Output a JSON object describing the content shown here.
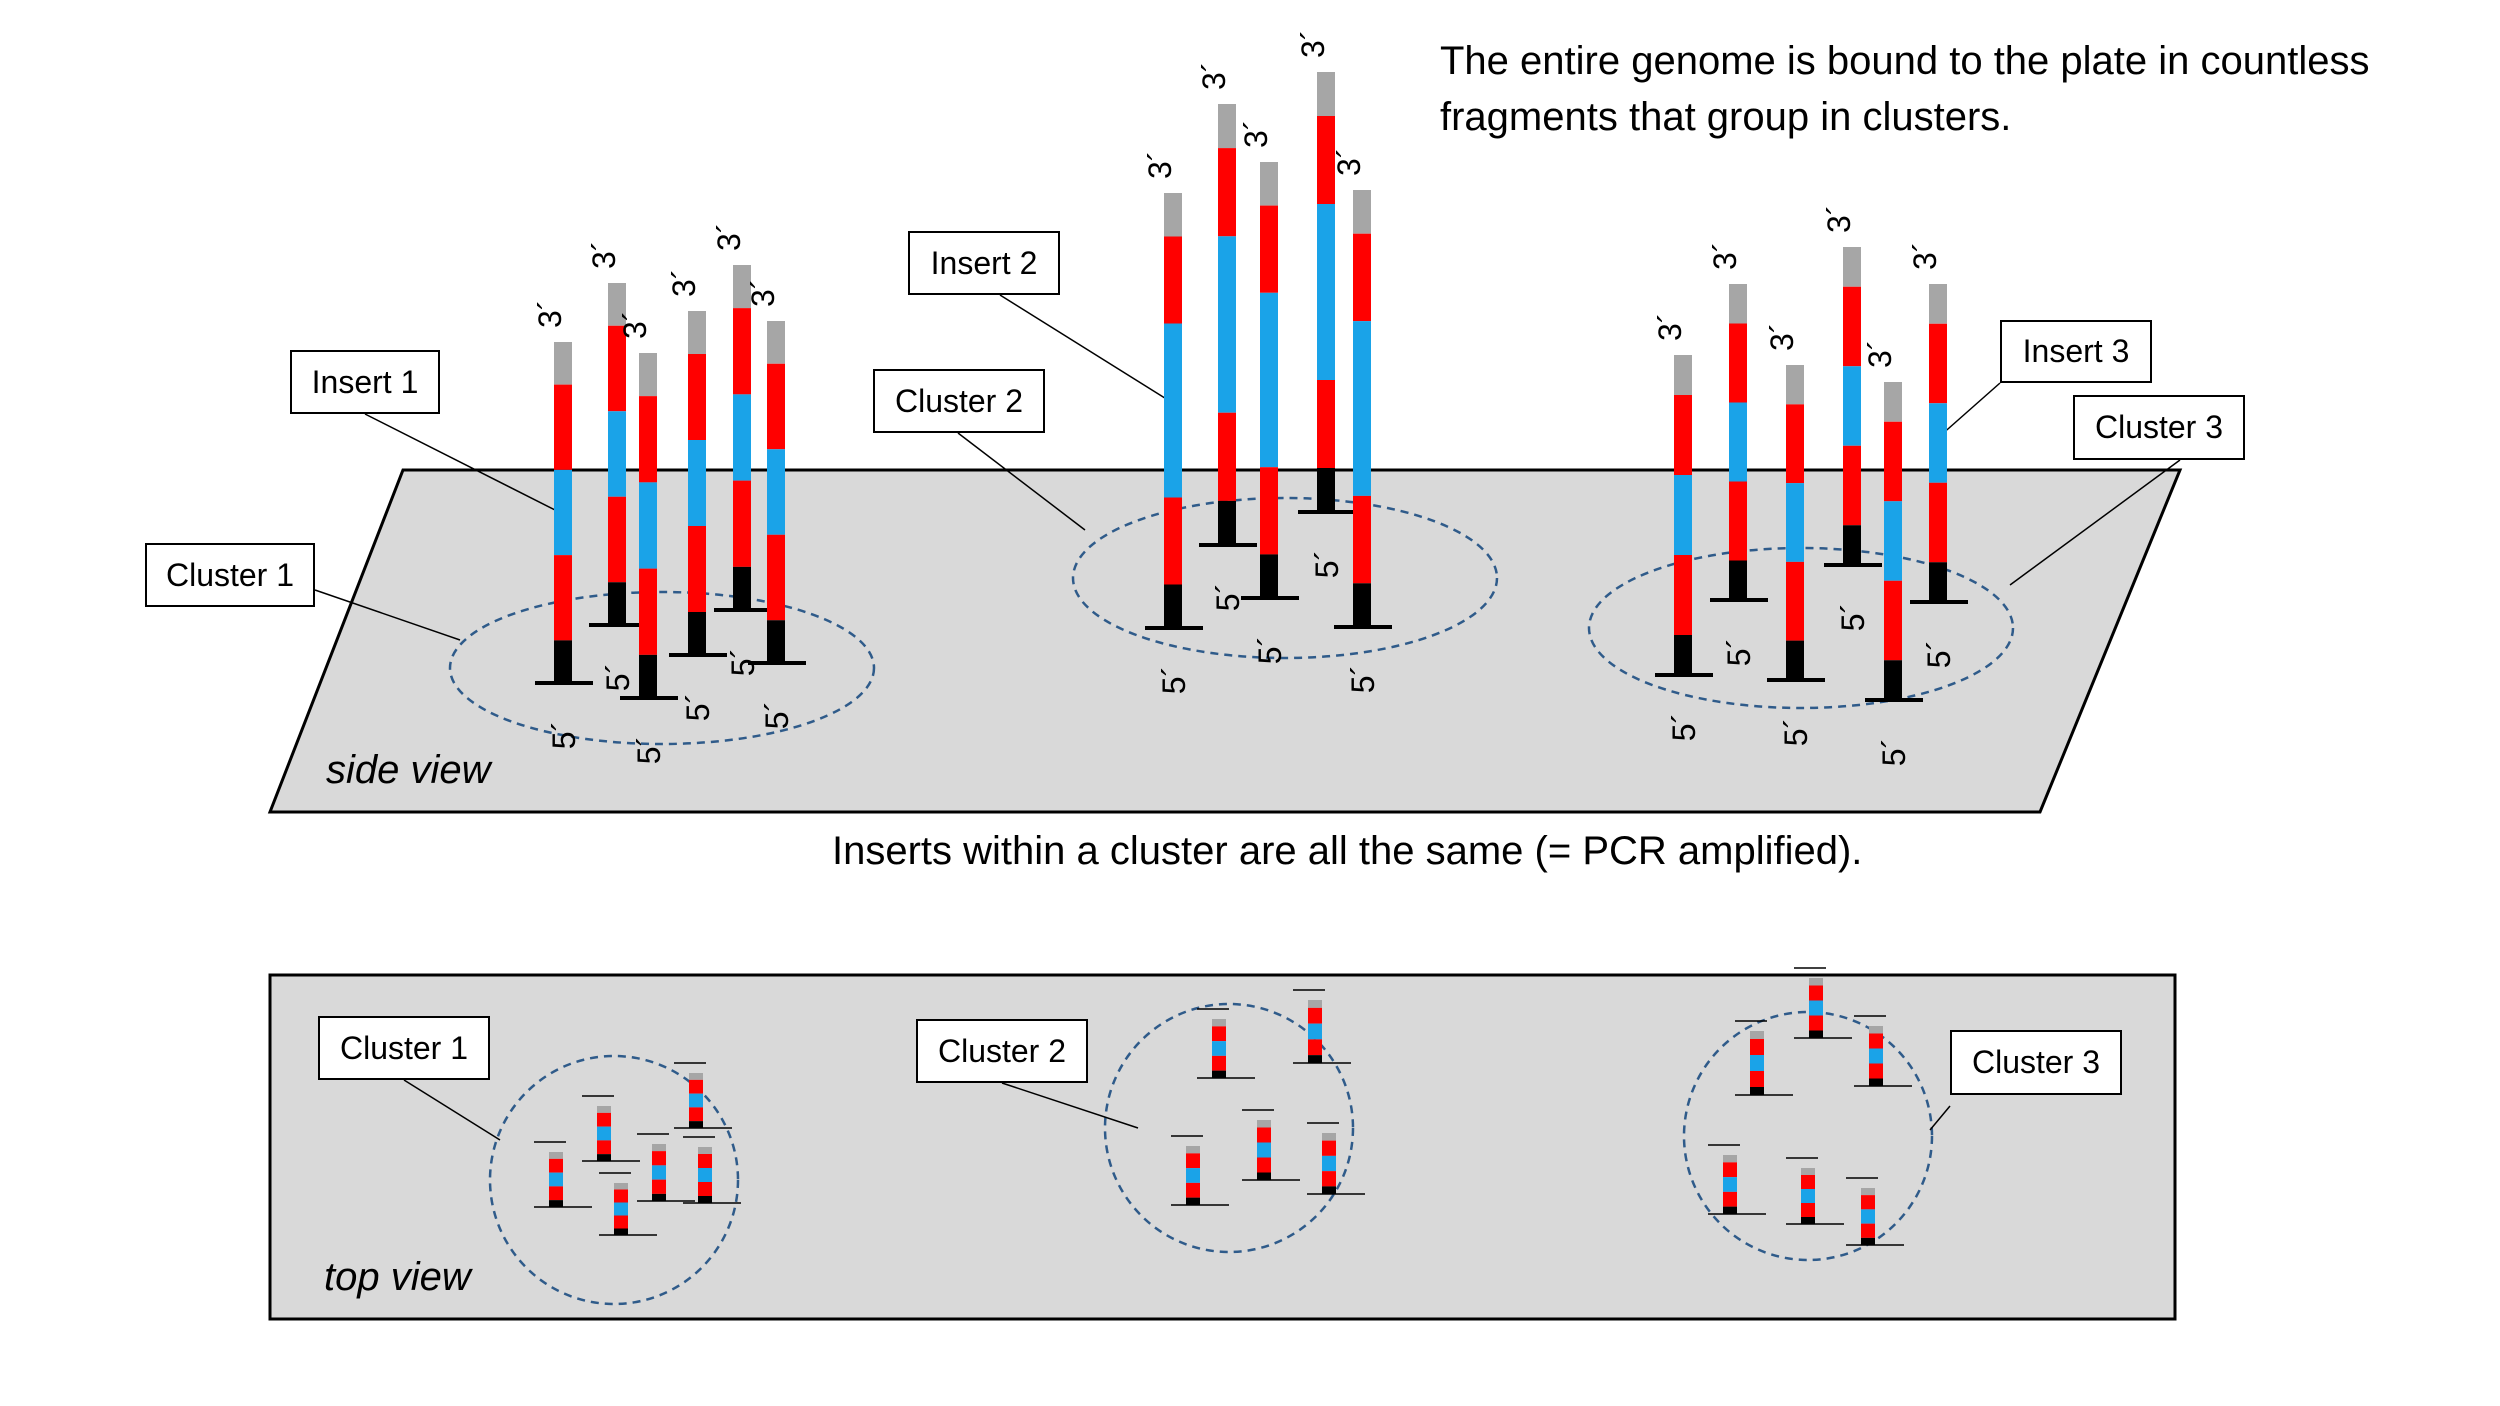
{
  "captions": {
    "genome_line1": "The entire genome is bound to the plate in countless",
    "genome_line2": "fragments that group in clusters.",
    "same_inserts": "Inserts within a cluster are all the same (= PCR amplified)."
  },
  "views": {
    "side": "side view",
    "top": "top view"
  },
  "labels": {
    "insert_1": "Insert 1",
    "insert_2": "Insert 2",
    "insert_3": "Insert 3",
    "cluster_1": "Cluster 1",
    "cluster_2": "Cluster 2",
    "cluster_3": "Cluster 3"
  },
  "strand_ends": {
    "three_prime": "3´",
    "five_prime": "5´"
  },
  "colors": {
    "plate_fill": "#d9d9d9",
    "adapter_3prime": "#a6a6a6",
    "adapter_red": "#ff0000",
    "insert_blue": "#1aa3e8",
    "anchor_black": "#000000",
    "cluster_outline": "#2f5b8a"
  }
}
